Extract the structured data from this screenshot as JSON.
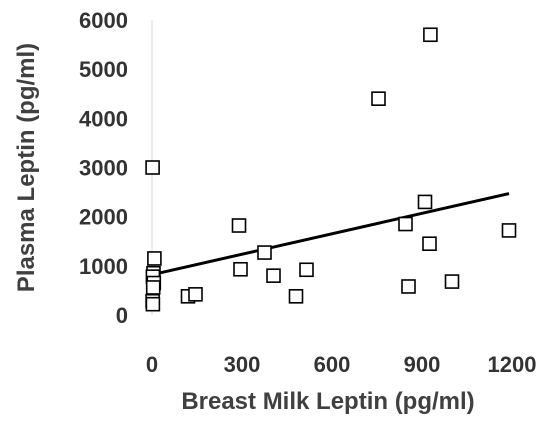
{
  "chart_data": {
    "type": "scatter",
    "title": "",
    "xlabel": "Breast Milk Leptin (pg/ml)",
    "ylabel": "Plasma Leptin (pg/ml)",
    "xlim": [
      0,
      1200
    ],
    "ylim": [
      0,
      6000
    ],
    "xticks": [
      "0",
      "300",
      "600",
      "900",
      "1200"
    ],
    "yticks": [
      "0",
      "1000",
      "2000",
      "3000",
      "4000",
      "5000",
      "6000"
    ],
    "grid": false,
    "legend": "none",
    "marker": "open-square",
    "points": [
      {
        "x": 2,
        "y": 3000
      },
      {
        "x": 8,
        "y": 1150
      },
      {
        "x": 5,
        "y": 850
      },
      {
        "x": 3,
        "y": 780
      },
      {
        "x": 6,
        "y": 650
      },
      {
        "x": 4,
        "y": 560
      },
      {
        "x": 2,
        "y": 280
      },
      {
        "x": 3,
        "y": 220
      },
      {
        "x": 120,
        "y": 380
      },
      {
        "x": 145,
        "y": 420
      },
      {
        "x": 290,
        "y": 1820
      },
      {
        "x": 295,
        "y": 930
      },
      {
        "x": 375,
        "y": 1270
      },
      {
        "x": 405,
        "y": 800
      },
      {
        "x": 480,
        "y": 380
      },
      {
        "x": 515,
        "y": 920
      },
      {
        "x": 755,
        "y": 4400
      },
      {
        "x": 845,
        "y": 1850
      },
      {
        "x": 855,
        "y": 580
      },
      {
        "x": 910,
        "y": 2300
      },
      {
        "x": 925,
        "y": 1450
      },
      {
        "x": 928,
        "y": 5700
      },
      {
        "x": 1000,
        "y": 680
      },
      {
        "x": 1190,
        "y": 1720
      }
    ],
    "trendline": {
      "x": [
        0,
        1190
      ],
      "y": [
        820,
        2470
      ]
    },
    "colors": {
      "marker_stroke": "#000000",
      "marker_fill": "#ffffff",
      "trendline": "#000000",
      "axis": "#d9d9d9"
    }
  }
}
